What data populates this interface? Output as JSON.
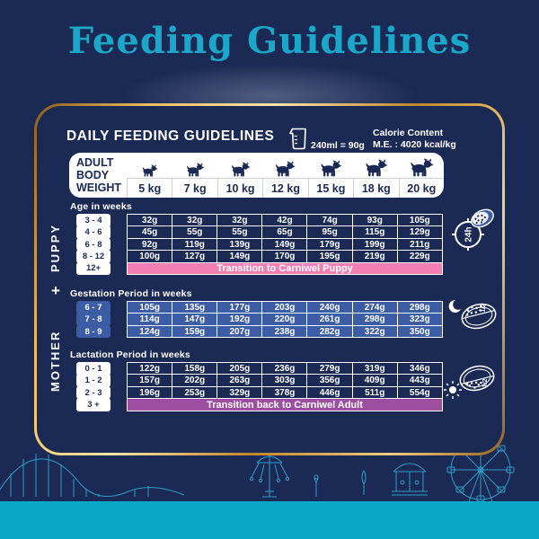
{
  "page": {
    "title": "Feeding Guidelines"
  },
  "card": {
    "heading": "DAILY FEEDING GUIDELINES",
    "cup_note": "240ml = 90g",
    "calorie_line1": "Calorie Content",
    "calorie_line2": "M.E. : 4020 kcal/kg",
    "weight_header": {
      "label_lines": [
        "ADULT",
        "BODY",
        "WEIGHT"
      ],
      "weights": [
        "5 kg",
        "7 kg",
        "10 kg",
        "12 kg",
        "15 kg",
        "18 kg",
        "20 kg"
      ]
    }
  },
  "sections": {
    "puppy": {
      "side_label": "PUPPY",
      "age_label": "Age in weeks",
      "rows": [
        {
          "age": "3 - 4",
          "values": [
            "32g",
            "32g",
            "32g",
            "42g",
            "74g",
            "93g",
            "105g"
          ]
        },
        {
          "age": "4 - 6",
          "values": [
            "45g",
            "55g",
            "55g",
            "65g",
            "95g",
            "115g",
            "129g"
          ]
        },
        {
          "age": "6 - 8",
          "values": [
            "92g",
            "119g",
            "139g",
            "149g",
            "179g",
            "199g",
            "211g"
          ]
        },
        {
          "age": "8 - 12",
          "values": [
            "100g",
            "127g",
            "149g",
            "170g",
            "195g",
            "219g",
            "229g"
          ]
        }
      ],
      "banner": {
        "age": "12+",
        "text": "Transition to Carniwel Puppy"
      }
    },
    "plus_sign": "+",
    "mother": {
      "side_label": "MOTHER",
      "gestation": {
        "label": "Gestation Period in weeks",
        "rows": [
          {
            "age": "6 - 7",
            "values": [
              "105g",
              "135g",
              "177g",
              "203g",
              "240g",
              "274g",
              "298g"
            ]
          },
          {
            "age": "7 - 8",
            "values": [
              "114g",
              "147g",
              "192g",
              "220g",
              "261g",
              "298g",
              "323g"
            ]
          },
          {
            "age": "8 - 9",
            "values": [
              "124g",
              "159g",
              "207g",
              "238g",
              "282g",
              "322g",
              "350g"
            ]
          }
        ]
      },
      "lactation": {
        "label": "Lactation Period in weeks",
        "rows": [
          {
            "age": "0 - 1",
            "values": [
              "122g",
              "158g",
              "205g",
              "236g",
              "279g",
              "319g",
              "346g"
            ]
          },
          {
            "age": "1 - 2",
            "values": [
              "157g",
              "202g",
              "263g",
              "303g",
              "356g",
              "409g",
              "443g"
            ]
          },
          {
            "age": "2 - 3",
            "values": [
              "196g",
              "253g",
              "329g",
              "378g",
              "446g",
              "511g",
              "554g"
            ]
          }
        ],
        "banner": {
          "age": "3 +",
          "text": "Transition back to Carniwel Adult"
        }
      }
    }
  },
  "meal_icons": {
    "all_day_label": "24h",
    "evening_half_label": "1/2",
    "morning_half_label": "1/2"
  },
  "colors": {
    "background_navy": "#1b2a55",
    "title_teal": "#1ba7c9",
    "gold_border": "#e0ab4e",
    "gestation_blue": "#3c5da6",
    "puppy_banner_pink": "#f37fb2",
    "adult_banner_purple": "#9c4fa0",
    "bottom_band_teal": "#07a9c6",
    "line_art_blue": "#2d9cc8"
  }
}
